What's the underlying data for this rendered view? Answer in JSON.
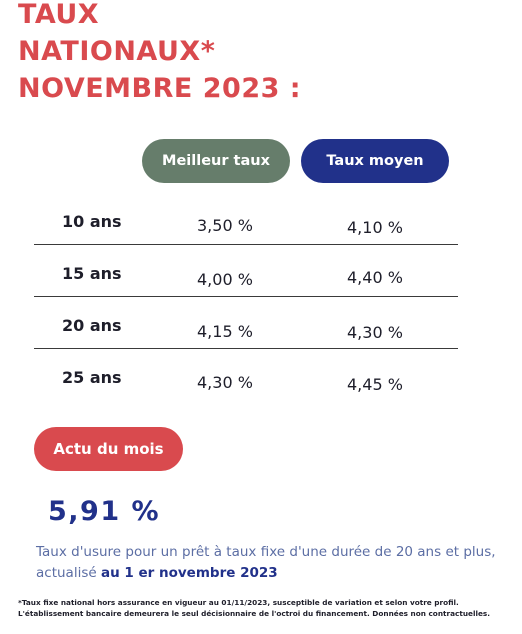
{
  "title": {
    "line1": "TAUX",
    "line2": "NATIONAUX*",
    "line3": "NOVEMBRE 2023 :"
  },
  "headers": {
    "best": "Meilleur taux",
    "average": "Taux moyen"
  },
  "rates": [
    {
      "duration": "10 ans",
      "best": "3,50 %",
      "average": "4,10 %"
    },
    {
      "duration": "15 ans",
      "best": "4,00 %",
      "average": "4,40 %"
    },
    {
      "duration": "20 ans",
      "best": "4,15 %",
      "average": "4,30 %"
    },
    {
      "duration": "25 ans",
      "best": "4,30 %",
      "average": "4,45 %"
    }
  ],
  "actu": {
    "label": "Actu du mois",
    "value": "5,91 %",
    "description": "Taux d'usure pour un prêt à taux fixe d'une durée de 20 ans et plus, actualisé",
    "date_text": "au 1 er novembre 2023"
  },
  "footnote": {
    "line1": "*Taux fixe national hors assurance en vigueur au 01/11/2023, susceptible de variation et selon votre profil.",
    "line2": "L'établissement bancaire demeurera le seul décisionnaire de l'octroi du financement. Données non contractuelles."
  },
  "colors": {
    "accent_red": "#d94a4e",
    "green_grey": "#667d6b",
    "navy": "#21318a"
  }
}
